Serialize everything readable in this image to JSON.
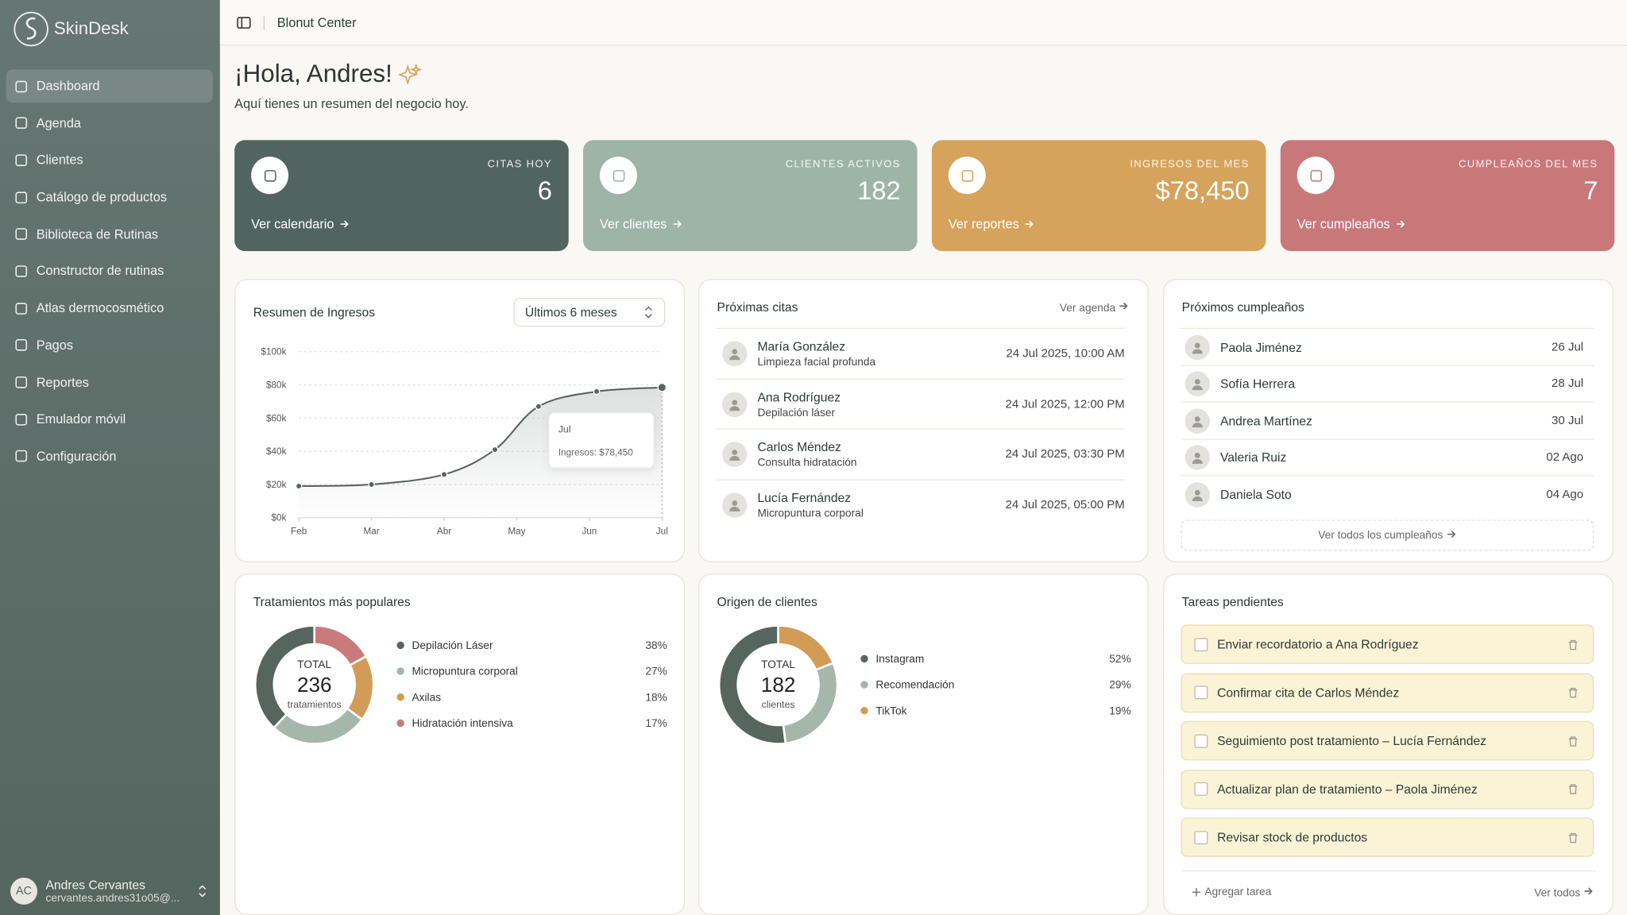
{
  "brand": "SkinDesk",
  "nav": [
    "Dashboard",
    "Agenda",
    "Clientes",
    "Catálogo de productos",
    "Biblioteca de Rutinas",
    "Constructor de rutinas",
    "Atlas dermocosmético",
    "Pagos",
    "Reportes",
    "Emulador móvil",
    "Configuración"
  ],
  "user": {
    "initials": "AC",
    "name": "Andres Cervantes",
    "email": "cervantes.andres31o05@..."
  },
  "header": {
    "title": "Blonut Center"
  },
  "greeting": {
    "title": "¡Hola, Andres!",
    "subtitle": "Aquí tienes un resumen del negocio hoy."
  },
  "stats": [
    {
      "label": "CITAS HOY",
      "value": "6",
      "link": "Ver calendario",
      "color": "#52645f"
    },
    {
      "label": "CLIENTES ACTIVOS",
      "value": "182",
      "link": "Ver clientes",
      "color": "#9db4a7"
    },
    {
      "label": "INGRESOS DEL MES",
      "value": "$78,450",
      "link": "Ver reportes",
      "color": "#d5a35b"
    },
    {
      "label": "CUMPLEAÑOS DEL MES",
      "value": "7",
      "link": "Ver cumpleaños",
      "color": "#c9787a"
    }
  ],
  "chart_data": [
    {
      "type": "line",
      "title": "Resumen de Ingresos",
      "selector": "Últimos 6 meses",
      "x": [
        0,
        1,
        2,
        2.7,
        3.3,
        4.1,
        5
      ],
      "series": [
        {
          "name": "Ingresos",
          "color": "#5c6461",
          "values": [
            19,
            20,
            26,
            41,
            67,
            76,
            78.45
          ]
        }
      ],
      "xlim": [
        0,
        5
      ],
      "xticks": [
        {
          "value": 0,
          "label": "Feb"
        },
        {
          "value": 1,
          "label": "Mar"
        },
        {
          "value": 2,
          "label": "Abr"
        },
        {
          "value": 3,
          "label": "May"
        },
        {
          "value": 4,
          "label": "Jun"
        },
        {
          "value": 5,
          "label": "Jul"
        }
      ],
      "ylim": [
        0,
        100
      ],
      "yticks": [
        {
          "value": 0,
          "label": "$0k"
        },
        {
          "value": 20,
          "label": "$20k"
        },
        {
          "value": 40,
          "label": "$40k"
        },
        {
          "value": 60,
          "label": "$60k"
        },
        {
          "value": 80,
          "label": "$80k"
        },
        {
          "value": 100,
          "label": "$100k"
        }
      ],
      "grid": true,
      "tooltip": {
        "title": "Jul",
        "text": "Ingresos: $78,450"
      }
    },
    {
      "type": "donut",
      "title": "Tratamientos más populares",
      "total_label": "TOTAL",
      "total": "236",
      "total_unit": "tratamientos",
      "categories": [
        "Depilación Láser",
        "Micropuntura corporal",
        "Axilas",
        "Hidratación intensiva"
      ],
      "values": [
        38,
        27,
        18,
        17
      ],
      "value_labels": [
        "38%",
        "27%",
        "18%",
        "17%"
      ],
      "colors": [
        "#56665f",
        "#a5b7ab",
        "#d29c56",
        "#c97b7b"
      ]
    },
    {
      "type": "donut",
      "title": "Origen de clientes",
      "total_label": "TOTAL",
      "total": "182",
      "total_unit": "clientes",
      "categories": [
        "Instagram",
        "Recomendación",
        "TikTok"
      ],
      "values": [
        52,
        29,
        19
      ],
      "value_labels": [
        "52%",
        "29%",
        "19%"
      ],
      "colors": [
        "#56665f",
        "#a5b7ab",
        "#d29c56"
      ]
    }
  ],
  "appointments": {
    "title": "Próximas citas",
    "link": "Ver agenda",
    "items": [
      {
        "name": "María González",
        "service": "Limpieza facial profunda",
        "date": "24 Jul 2025, 10:00 AM"
      },
      {
        "name": "Ana Rodríguez",
        "service": "Depilación láser",
        "date": "24 Jul 2025, 12:00 PM"
      },
      {
        "name": "Carlos Méndez",
        "service": "Consulta hidratación",
        "date": "24 Jul 2025, 03:30 PM"
      },
      {
        "name": "Lucía Fernández",
        "service": "Micropuntura corporal",
        "date": "24 Jul 2025, 05:00 PM"
      }
    ]
  },
  "birthdays": {
    "title": "Próximos cumpleaños",
    "link": "Ver todos los cumpleaños",
    "items": [
      {
        "name": "Paola Jiménez",
        "date": "26 Jul"
      },
      {
        "name": "Sofía Herrera",
        "date": "28 Jul"
      },
      {
        "name": "Andrea Martínez",
        "date": "30 Jul"
      },
      {
        "name": "Valeria Ruiz",
        "date": "02 Ago"
      },
      {
        "name": "Daniela Soto",
        "date": "04 Ago"
      }
    ]
  },
  "tasks": {
    "title": "Tareas pendientes",
    "add": "Agregar tarea",
    "link": "Ver todos",
    "items": [
      "Enviar recordatorio a Ana Rodríguez",
      "Confirmar cita de Carlos Méndez",
      "Seguimiento post tratamiento – Lucía Fernández",
      "Actualizar plan de tratamiento – Paola Jiménez",
      "Revisar stock de productos"
    ]
  }
}
